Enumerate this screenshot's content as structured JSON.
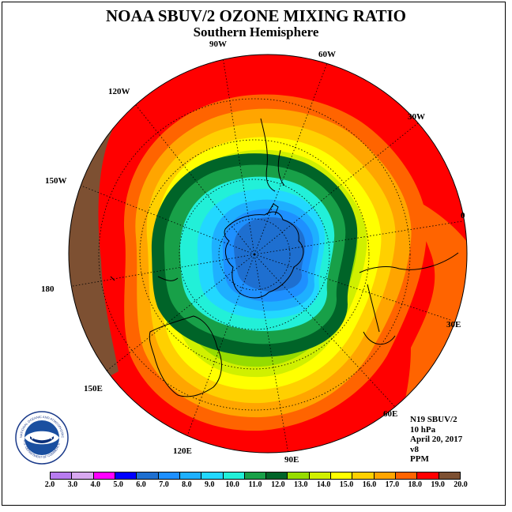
{
  "title": "NOAA SBUV/2 OZONE MIXING RATIO",
  "subtitle": "Southern Hemisphere",
  "map": {
    "projection": "polar stereographic",
    "hemisphere": "south",
    "longitude_labels": [
      "90W",
      "60W",
      "30W",
      "0",
      "30E",
      "60E",
      "90E",
      "120E",
      "150E",
      "180",
      "150W",
      "120W"
    ],
    "contour_levels": [
      2.0,
      3.0,
      4.0,
      5.0,
      6.0,
      7.0,
      8.0,
      9.0,
      10.0,
      11.0,
      12.0,
      13.0,
      14.0,
      15.0,
      16.0,
      17.0,
      18.0,
      19.0,
      20.0
    ],
    "colors": [
      "#b87cf0",
      "#d8a8f0",
      "#ff00ff",
      "#0000ff",
      "#1e6fd0",
      "#1e90ff",
      "#1eb0ff",
      "#22d8ff",
      "#22f0d8",
      "#18a048",
      "#006428",
      "#96dc00",
      "#d0f000",
      "#ffff00",
      "#ffd000",
      "#ffa500",
      "#ff6400",
      "#ff0000",
      "#7d5032"
    ]
  },
  "logo": {
    "text": "NOAA",
    "ring_text": "NATIONAL OCEANIC AND ATMOSPHERIC ADMINISTRATION",
    "ring_text_bottom": "U.S. DEPARTMENT OF COMMERCE"
  },
  "info": {
    "satellite": "N19 SBUV/2",
    "level": "10 hPa",
    "date": "April 20, 2017",
    "version": "v8",
    "units": "PPM"
  },
  "colorbar": {
    "ticks": [
      "2.0",
      "3.0",
      "4.0",
      "5.0",
      "6.0",
      "7.0",
      "8.0",
      "9.0",
      "10.0",
      "11.0",
      "12.0",
      "13.0",
      "14.0",
      "15.0",
      "16.0",
      "17.0",
      "18.0",
      "19.0",
      "20.0"
    ]
  }
}
